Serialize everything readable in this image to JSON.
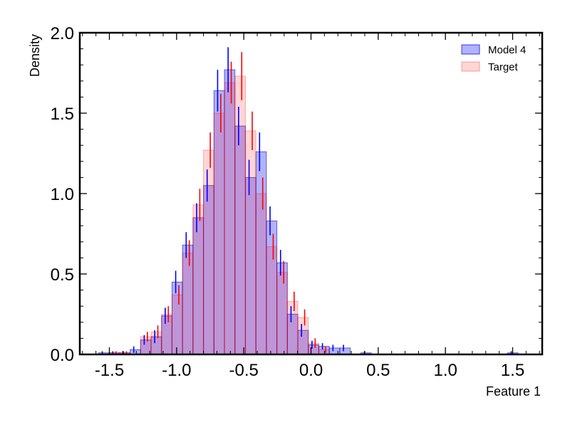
{
  "chart_data": {
    "type": "bar",
    "xlabel": "Feature 1",
    "ylabel": "Density",
    "xlim": [
      -1.72,
      1.72
    ],
    "ylim": [
      0,
      2.0
    ],
    "x_ticks": [
      -1.5,
      -1.0,
      -0.5,
      0.0,
      0.5,
      1.0,
      1.5
    ],
    "x_tick_labels": [
      "-1.5",
      "-1.0",
      "-0.5",
      "0.0",
      "0.5",
      "1.0",
      "1.5"
    ],
    "y_ticks": [
      0.0,
      0.5,
      1.0,
      1.5,
      2.0
    ],
    "y_tick_labels": [
      "0.0",
      "0.5",
      "1.0",
      "1.5",
      "2.0"
    ],
    "legend_position": "top-right",
    "bin_edges": [
      -1.58,
      -1.502,
      -1.424,
      -1.346,
      -1.268,
      -1.19,
      -1.112,
      -1.034,
      -0.956,
      -0.878,
      -0.8,
      -0.722,
      -0.644,
      -0.566,
      -0.488,
      -0.41,
      -0.332,
      -0.254,
      -0.176,
      -0.098,
      -0.02,
      0.058,
      0.136,
      0.214,
      0.292,
      0.37,
      0.448,
      0.526,
      0.604,
      0.682,
      0.76,
      0.838,
      0.916,
      0.994,
      1.072,
      1.15,
      1.228,
      1.306,
      1.384,
      1.462,
      1.54,
      1.618
    ],
    "series": [
      {
        "name": "Model 4",
        "color": "#0000ff",
        "values": [
          0.01,
          0.01,
          0.01,
          0.03,
          0.09,
          0.11,
          0.24,
          0.45,
          0.68,
          0.85,
          1.05,
          1.64,
          1.77,
          1.42,
          1.1,
          1.26,
          0.83,
          0.57,
          0.25,
          0.15,
          0.06,
          0.05,
          0.04,
          0.04,
          0.0,
          0.01,
          0.0,
          0.0,
          0.0,
          0.0,
          0.0,
          0.0,
          0.0,
          0.0,
          0.0,
          0.0,
          0.0,
          0.0,
          0.0,
          0.01,
          0.0
        ],
        "errors": [
          0.01,
          0.01,
          0.01,
          0.02,
          0.03,
          0.04,
          0.05,
          0.07,
          0.08,
          0.09,
          0.1,
          0.13,
          0.14,
          0.12,
          0.11,
          0.12,
          0.09,
          0.08,
          0.05,
          0.04,
          0.025,
          0.02,
          0.02,
          0.02,
          0.0,
          0.01,
          0.0,
          0.0,
          0.0,
          0.0,
          0.0,
          0.0,
          0.0,
          0.0,
          0.0,
          0.0,
          0.0,
          0.0,
          0.0,
          0.01,
          0.0
        ]
      },
      {
        "name": "Target",
        "color": "#ff0000",
        "values": [
          0.0,
          0.01,
          0.01,
          0.0,
          0.11,
          0.14,
          0.25,
          0.37,
          0.63,
          0.93,
          1.27,
          1.5,
          1.69,
          1.73,
          1.39,
          1.0,
          0.67,
          0.51,
          0.33,
          0.23,
          0.07,
          0.03,
          0.0,
          0.0,
          0.0,
          0.0,
          0.0,
          0.0,
          0.0,
          0.0,
          0.0,
          0.0,
          0.0,
          0.0,
          0.0,
          0.0,
          0.0,
          0.0,
          0.0,
          0.0,
          0.0
        ],
        "errors": [
          0.0,
          0.01,
          0.01,
          0.0,
          0.03,
          0.04,
          0.05,
          0.06,
          0.08,
          0.1,
          0.11,
          0.12,
          0.13,
          0.15,
          0.12,
          0.1,
          0.08,
          0.07,
          0.06,
          0.05,
          0.03,
          0.02,
          0.0,
          0.0,
          0.0,
          0.0,
          0.0,
          0.0,
          0.0,
          0.0,
          0.0,
          0.0,
          0.0,
          0.0,
          0.0,
          0.0,
          0.0,
          0.0,
          0.0,
          0.0,
          0.0
        ]
      }
    ]
  }
}
